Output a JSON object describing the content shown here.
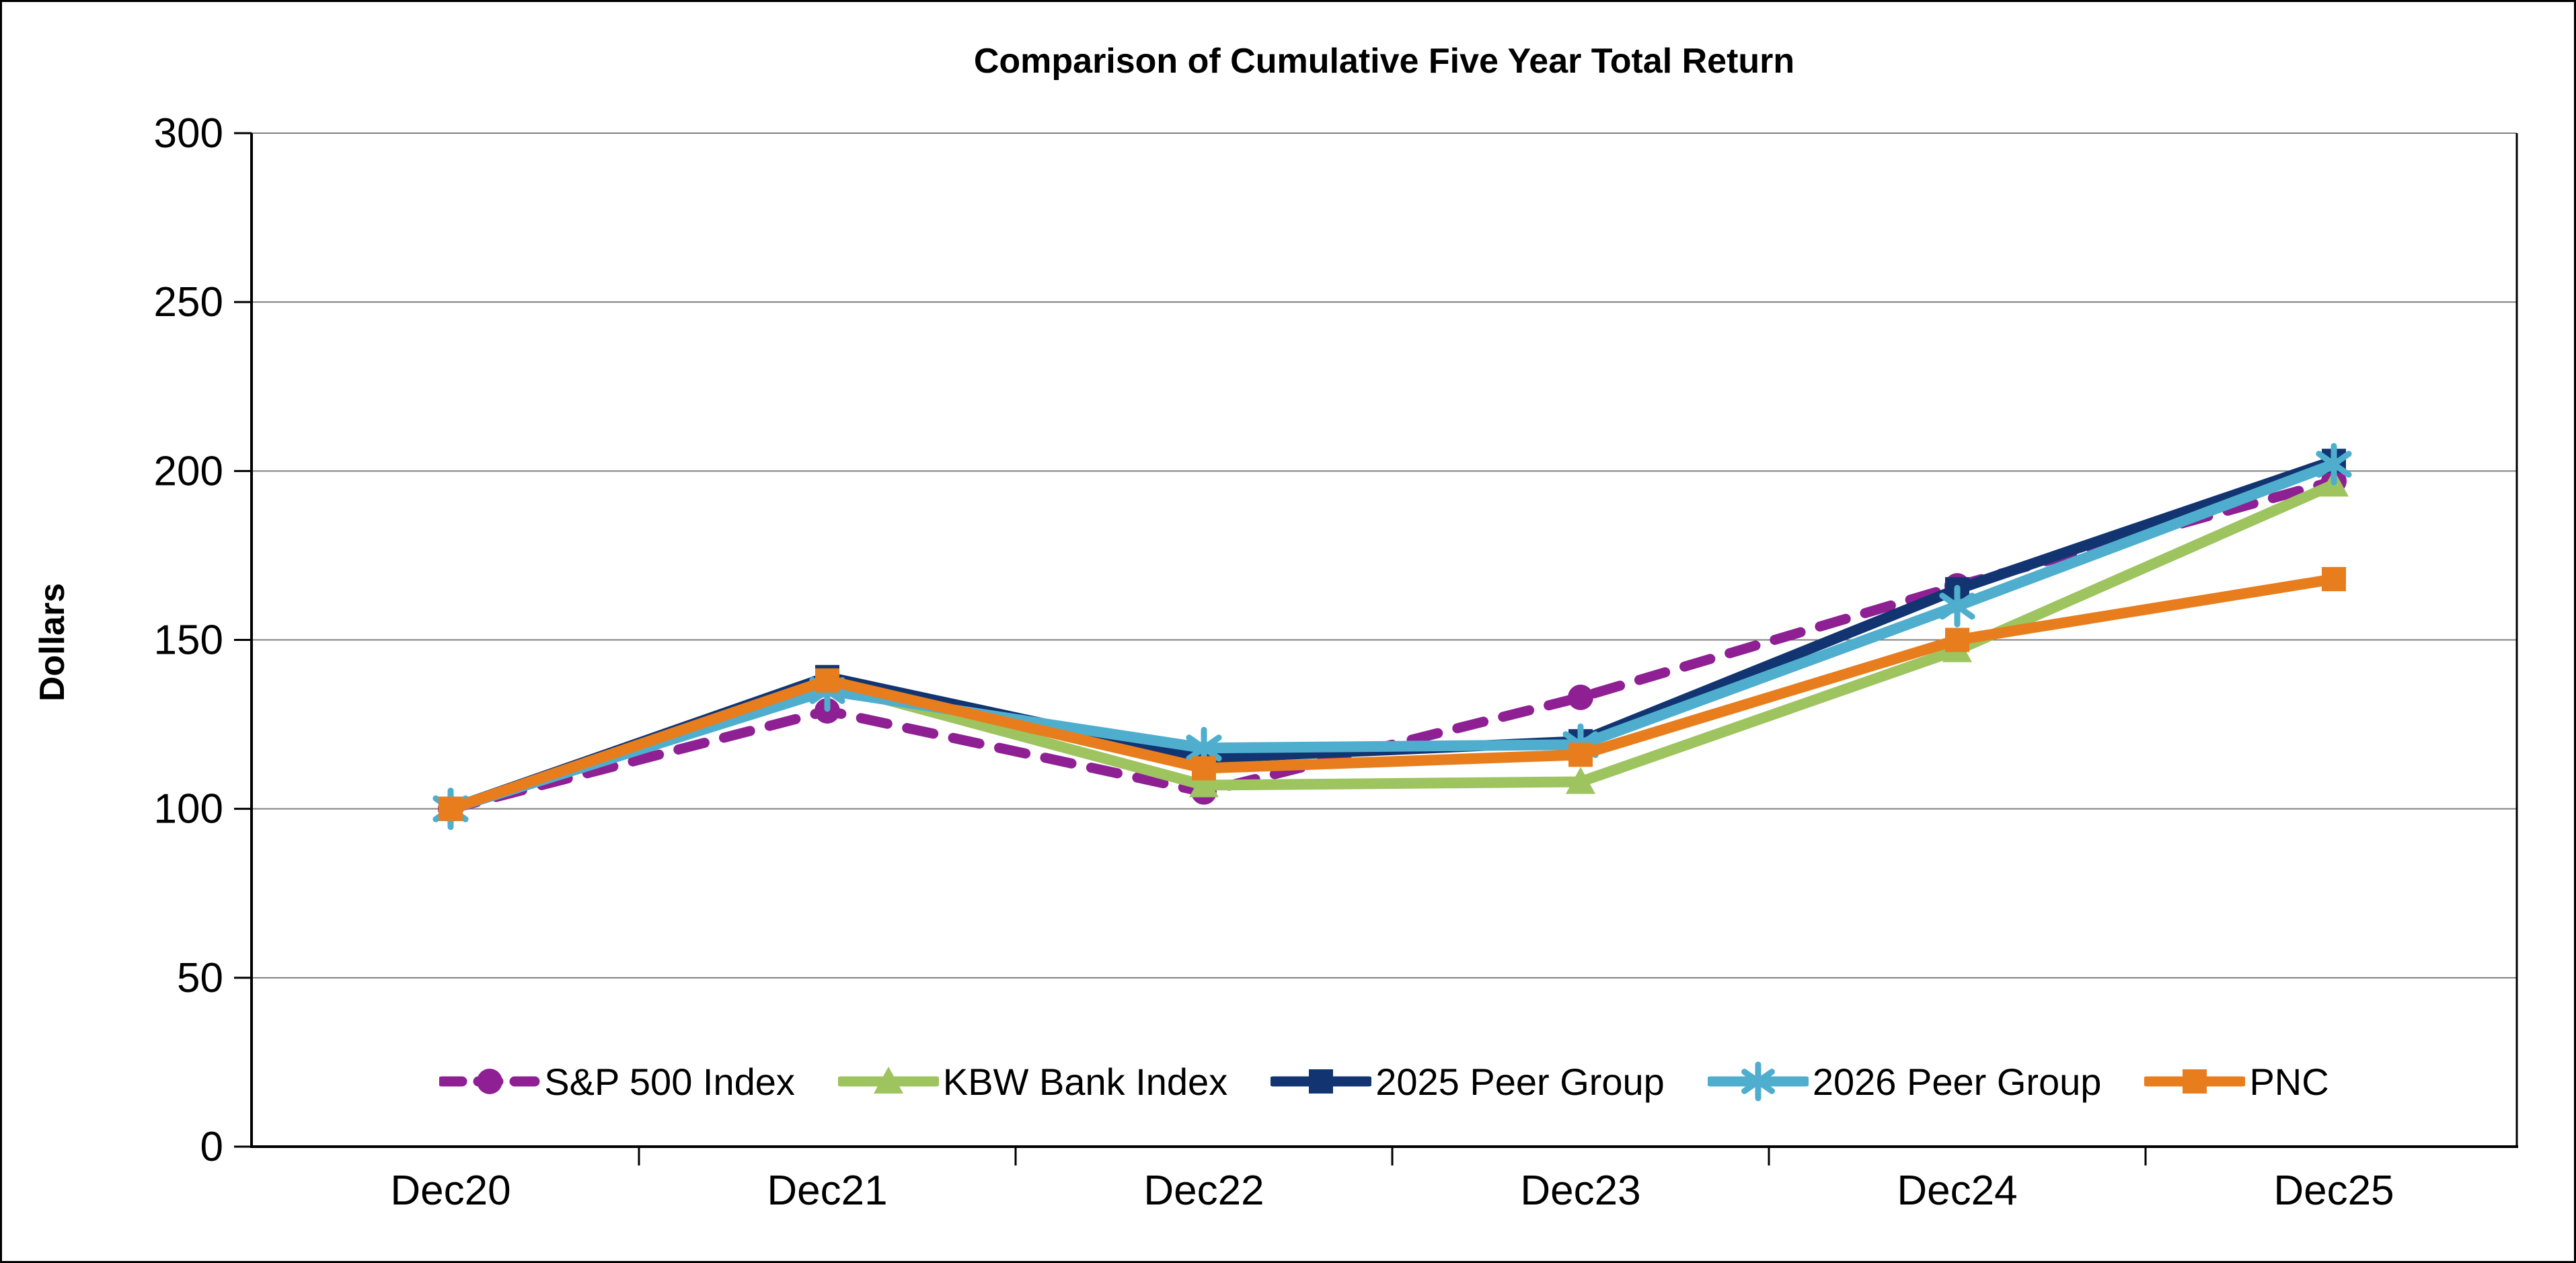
{
  "chart_data": {
    "type": "line",
    "title": "Comparison of Cumulative Five Year Total Return",
    "xlabel": "",
    "ylabel": "Dollars",
    "categories": [
      "Dec20",
      "Dec21",
      "Dec22",
      "Dec23",
      "Dec24",
      "Dec25"
    ],
    "ylim": [
      0,
      300
    ],
    "yticks": [
      0,
      50,
      100,
      150,
      200,
      250,
      300
    ],
    "grid": "horizontal-every-50",
    "legend_position": "bottom-center-inside",
    "series": [
      {
        "name": "S&P 500 Index",
        "color": "#8E2093",
        "marker": "circle",
        "line_style": "dashed",
        "values": [
          100,
          129,
          105,
          133,
          166,
          197
        ]
      },
      {
        "name": "KBW Bank Index",
        "color": "#9DC45F",
        "marker": "triangle",
        "line_style": "solid",
        "values": [
          100,
          137,
          107,
          108,
          147,
          196
        ]
      },
      {
        "name": "2025 Peer Group",
        "color": "#123572",
        "marker": "square",
        "line_style": "solid",
        "values": [
          100,
          139,
          115,
          120,
          165,
          203
        ]
      },
      {
        "name": "2026 Peer Group",
        "color": "#4FAECE",
        "marker": "asterisk",
        "line_style": "solid",
        "values": [
          100,
          135,
          118,
          119,
          160,
          202
        ]
      },
      {
        "name": "PNC",
        "color": "#E87D1E",
        "marker": "square",
        "line_style": "solid",
        "values": [
          100,
          138,
          112,
          116,
          150,
          168
        ]
      }
    ]
  },
  "colors": {
    "background": "#FFFFFF",
    "axis": "#000000",
    "gridline": "#7F7F7F",
    "text": "#000000"
  }
}
